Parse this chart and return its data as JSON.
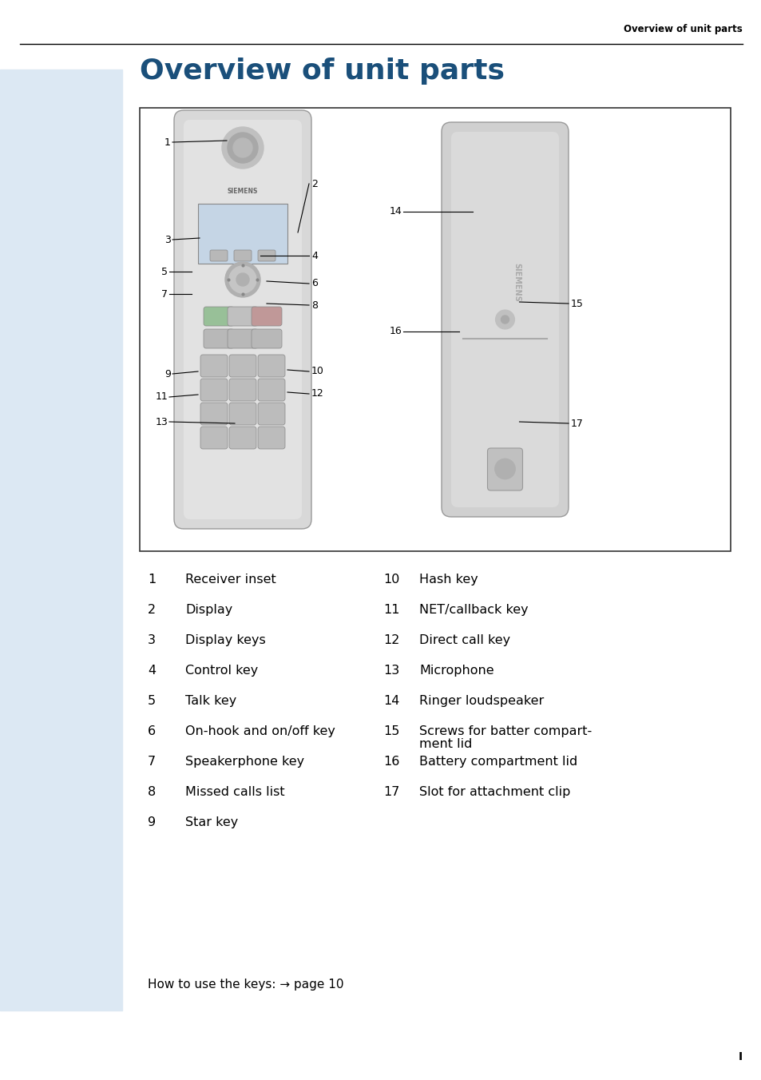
{
  "page_title": "Overview of unit parts",
  "header_right_text": "Overview of unit parts",
  "bg_color": "#ffffff",
  "sidebar_color": "#dce8f3",
  "title_color": "#1a4f7a",
  "body_text_color": "#000000",
  "header_text_color": "#000000",
  "parts_left": [
    [
      "1",
      "Receiver inset"
    ],
    [
      "2",
      "Display"
    ],
    [
      "3",
      "Display keys"
    ],
    [
      "4",
      "Control key"
    ],
    [
      "5",
      "Talk key"
    ],
    [
      "6",
      "On-hook and on/off key"
    ],
    [
      "7",
      "Speakerphone key"
    ],
    [
      "8",
      "Missed calls list"
    ],
    [
      "9",
      "Star key"
    ]
  ],
  "parts_right": [
    [
      "10",
      "Hash key"
    ],
    [
      "11",
      "NET/callback key"
    ],
    [
      "12",
      "Direct call key"
    ],
    [
      "13",
      "Microphone"
    ],
    [
      "14",
      "Ringer loudspeaker"
    ],
    [
      "15",
      "Screws for batter compart-\nment lid"
    ],
    [
      "16",
      "Battery compartment lid"
    ],
    [
      "17",
      "Slot for attachment clip"
    ]
  ],
  "footer_text": "How to use the keys: → page 10",
  "page_number": "I"
}
